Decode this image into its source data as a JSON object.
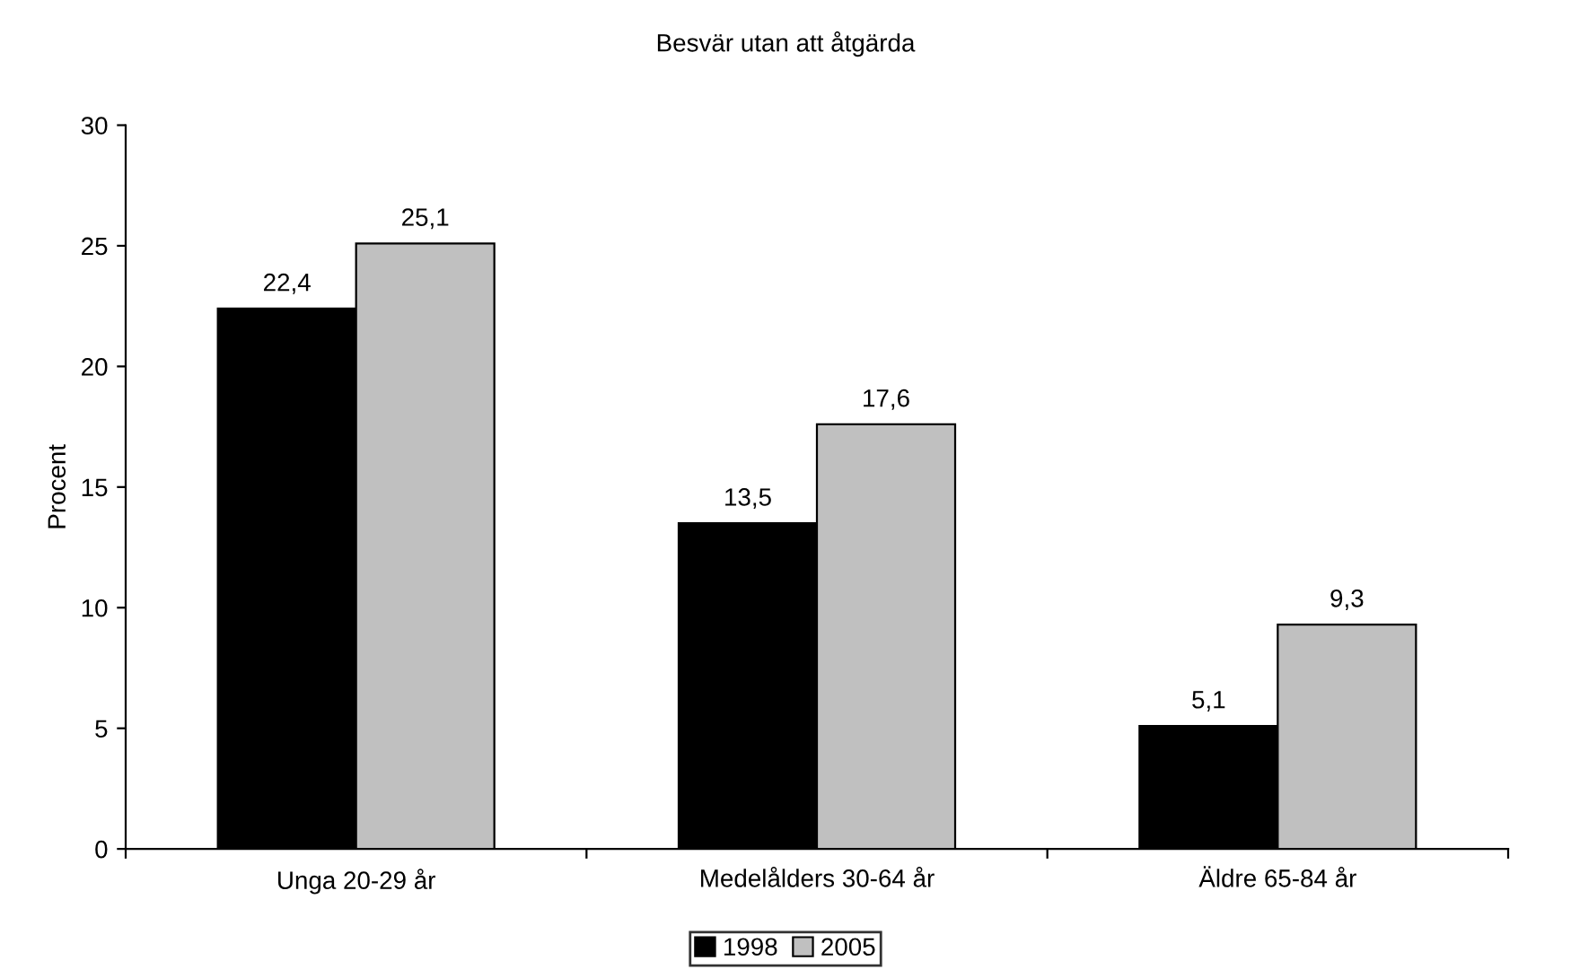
{
  "chart_data": {
    "type": "bar",
    "title": "Besvär utan att åtgärda",
    "ylabel": "Procent",
    "categories": [
      "Unga 20-29 år",
      "Medelålders 30-64 år",
      "Äldre 65-84 år"
    ],
    "series": [
      {
        "name": "1998",
        "color": "#000000",
        "values": [
          22.4,
          13.5,
          5.1
        ],
        "value_labels": [
          "22,4",
          "13,5",
          "5,1"
        ]
      },
      {
        "name": "2005",
        "color": "#c0c0c0",
        "values": [
          25.1,
          17.6,
          9.3
        ],
        "value_labels": [
          "25,1",
          "17,6",
          "9,3"
        ]
      }
    ],
    "ylim": [
      0,
      30
    ],
    "yticks": [
      0,
      5,
      10,
      15,
      20,
      25,
      30
    ],
    "grid": false,
    "legend": "bottom"
  }
}
